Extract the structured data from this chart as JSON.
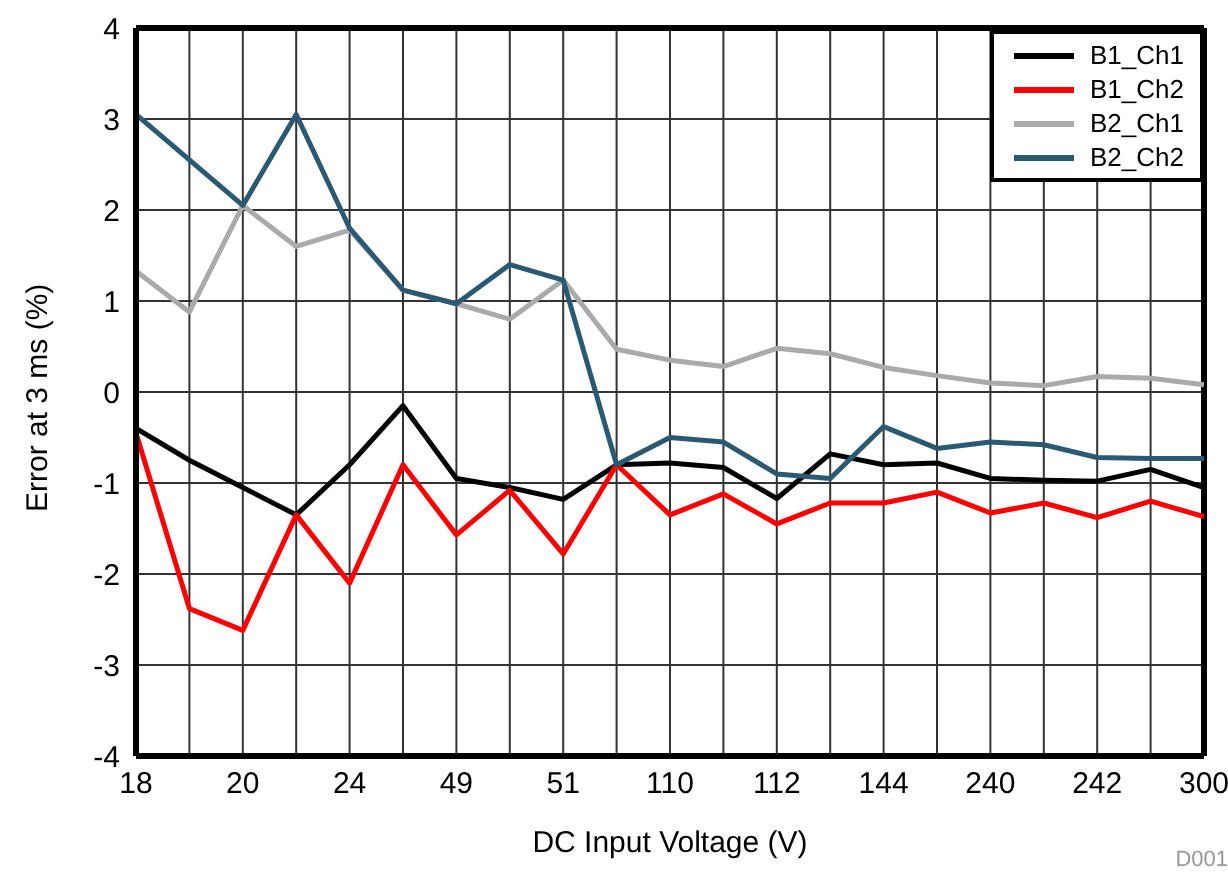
{
  "chart_data": {
    "type": "line",
    "xlabel": "DC Input Voltage (V)",
    "ylabel": "Error at 3 ms (%)",
    "annotations": [
      "D001"
    ],
    "categories": [
      "18",
      null,
      "20",
      null,
      "24",
      null,
      "49",
      null,
      "51",
      null,
      "110",
      null,
      "112",
      null,
      "144",
      null,
      "240",
      null,
      "242",
      null,
      "300"
    ],
    "series": [
      {
        "name": "B1_Ch1",
        "color": "#000000",
        "values": [
          -0.4,
          -0.75,
          -1.05,
          -1.35,
          -0.8,
          -0.15,
          -0.95,
          -1.05,
          -1.18,
          -0.8,
          -0.78,
          -0.83,
          -1.17,
          -0.68,
          -0.8,
          -0.78,
          -0.95,
          -0.97,
          -0.98,
          -0.85,
          -1.05
        ]
      },
      {
        "name": "B1_Ch2",
        "color": "#ff0000",
        "values": [
          -0.45,
          -2.38,
          -2.62,
          -1.35,
          -2.1,
          -0.8,
          -1.57,
          -1.08,
          -1.78,
          -0.8,
          -1.35,
          -1.12,
          -1.45,
          -1.22,
          -1.22,
          -1.1,
          -1.33,
          -1.22,
          -1.38,
          -1.2,
          -1.37
        ]
      },
      {
        "name": "B2_Ch1",
        "color": "#aaaaaa",
        "values": [
          1.33,
          0.88,
          2.05,
          1.6,
          1.78,
          1.12,
          0.97,
          0.8,
          1.23,
          0.47,
          0.35,
          0.28,
          0.48,
          0.42,
          0.27,
          0.18,
          0.1,
          0.07,
          0.17,
          0.15,
          0.08
        ]
      },
      {
        "name": "B2_Ch2",
        "color": "#2a5a73",
        "values": [
          3.05,
          2.55,
          2.05,
          3.05,
          1.8,
          1.12,
          0.97,
          1.4,
          1.23,
          -0.8,
          -0.5,
          -0.55,
          -0.9,
          -0.95,
          -0.38,
          -0.62,
          -0.55,
          -0.58,
          -0.72,
          -0.73,
          -0.73
        ]
      }
    ],
    "ylim": [
      -4,
      4
    ],
    "yticks": [
      -4,
      -3,
      -2,
      -1,
      0,
      1,
      2,
      3,
      4
    ],
    "grid": true,
    "legend": "top right",
    "marker": "none",
    "line_style": "solid"
  }
}
